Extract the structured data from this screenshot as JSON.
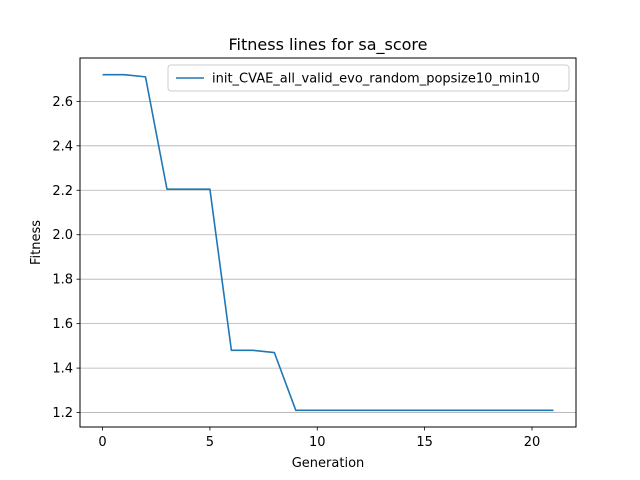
{
  "chart_data": {
    "type": "line",
    "title": "Fitness lines for sa_score",
    "xlabel": "Generation",
    "ylabel": "Fitness",
    "xlim": [
      -1.05,
      22.05
    ],
    "ylim": [
      1.135,
      2.795
    ],
    "x_ticks": [
      0,
      5,
      10,
      15,
      20
    ],
    "x_tick_labels": [
      "0",
      "5",
      "10",
      "15",
      "20"
    ],
    "y_ticks": [
      1.2,
      1.4,
      1.6,
      1.8,
      2.0,
      2.2,
      2.4,
      2.6
    ],
    "y_tick_labels": [
      "1.2",
      "1.4",
      "1.6",
      "1.8",
      "2.0",
      "2.2",
      "2.4",
      "2.6"
    ],
    "grid": "horizontal",
    "legend_position": "top-right",
    "series": [
      {
        "name": "init_CVAE_all_valid_evo_random_popsize10_min10",
        "color": "#1f77b4",
        "x": [
          0,
          1,
          2,
          3,
          4,
          5,
          6,
          7,
          8,
          9,
          10,
          11,
          12,
          13,
          14,
          15,
          16,
          17,
          18,
          19,
          20,
          21
        ],
        "values": [
          2.72,
          2.72,
          2.71,
          2.205,
          2.205,
          2.205,
          1.48,
          1.48,
          1.47,
          1.21,
          1.21,
          1.21,
          1.21,
          1.21,
          1.21,
          1.21,
          1.21,
          1.21,
          1.21,
          1.21,
          1.21,
          1.21
        ]
      }
    ]
  }
}
